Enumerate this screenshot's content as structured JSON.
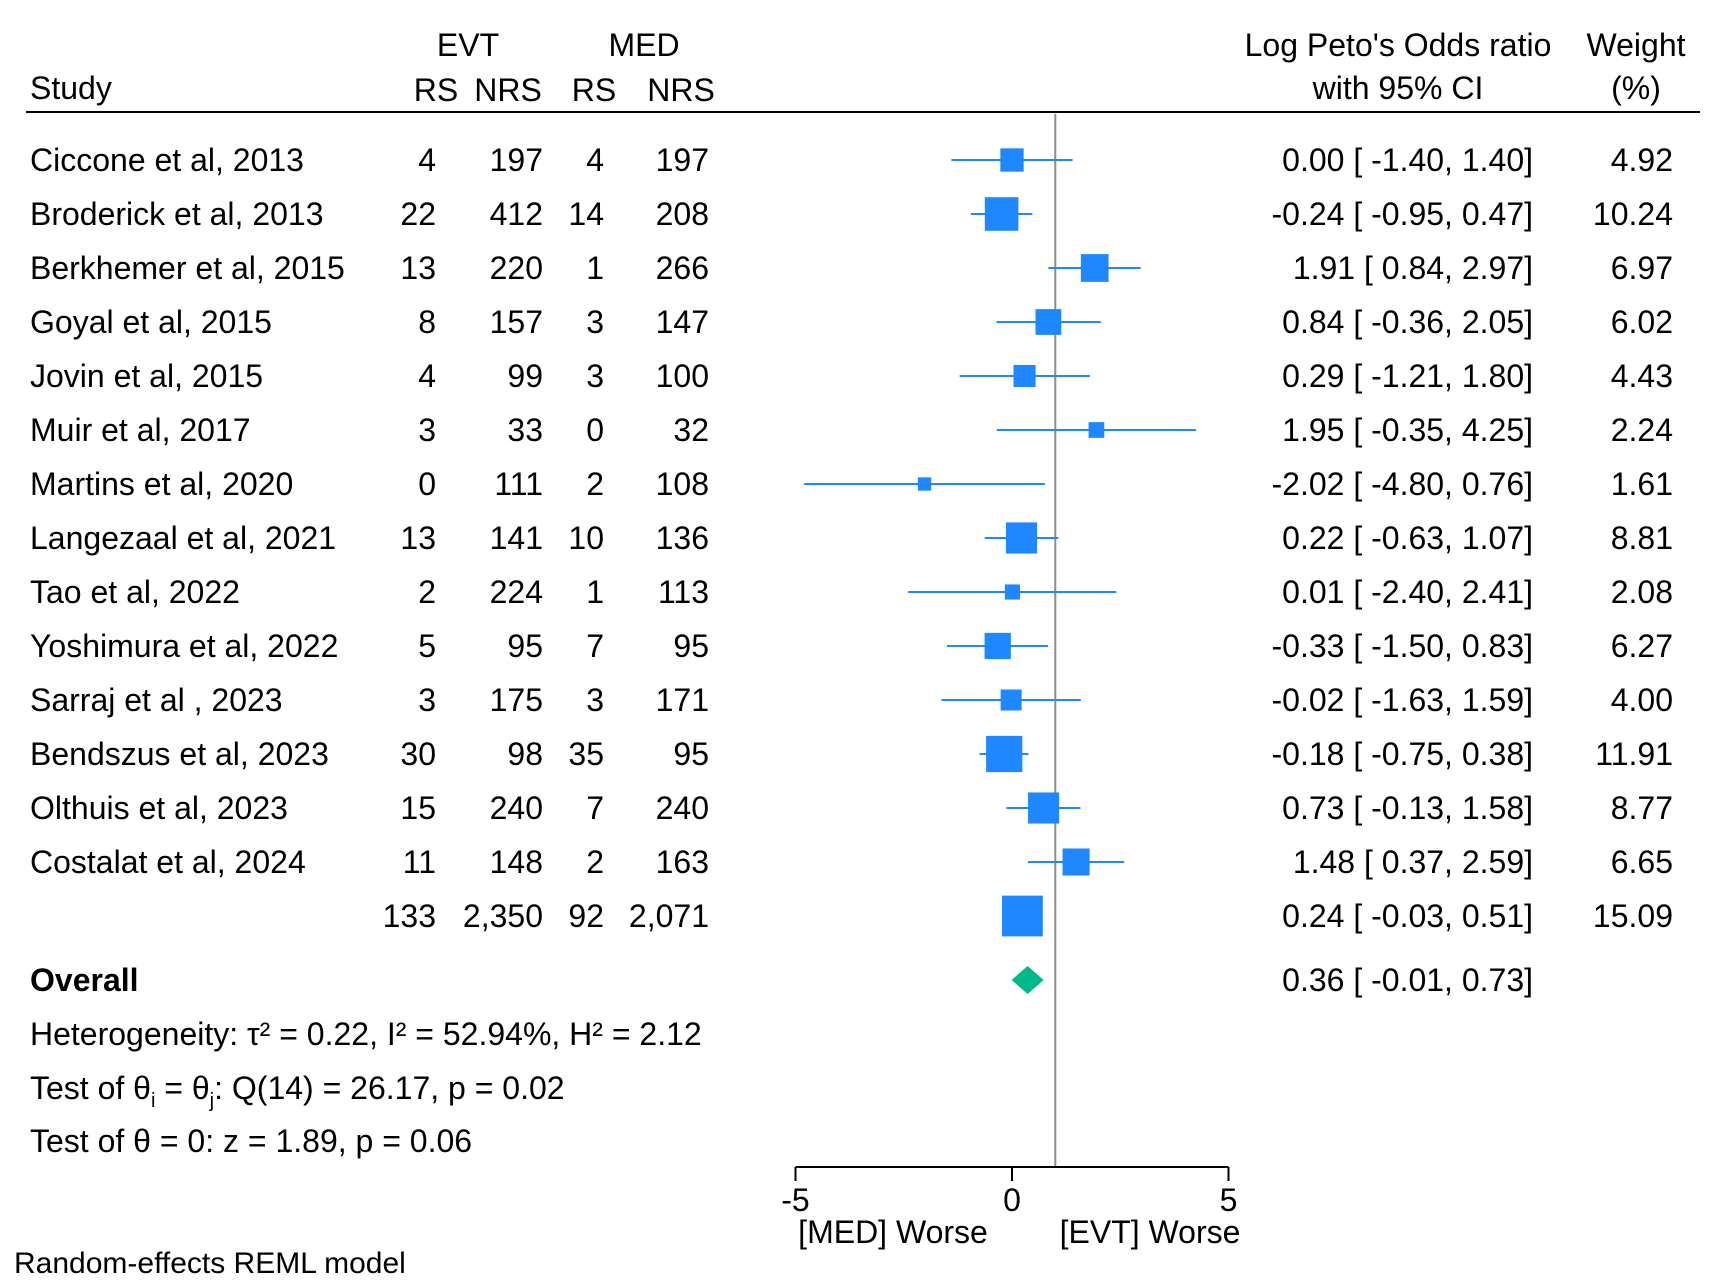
{
  "chart_data": {
    "type": "forest",
    "model_note": "Random-effects REML model",
    "columns": {
      "study": "Study",
      "evt_group": "EVT",
      "med_group": "MED",
      "rs": "RS",
      "nrs": "NRS",
      "effect_line1": "Log Peto's Odds ratio",
      "effect_line2": "with 95% CI",
      "weight_line1": "Weight",
      "weight_line2": "(%)"
    },
    "studies": [
      {
        "study": "Ciccone et al, 2013",
        "evt_rs": "4",
        "evt_nrs": "197",
        "med_rs": "4",
        "med_nrs": "197",
        "est": 0.0,
        "lo": -1.4,
        "hi": 1.4,
        "ci_text": "0.00 [ -1.40,  1.40]",
        "weight": "4.92"
      },
      {
        "study": "Broderick et al, 2013",
        "evt_rs": "22",
        "evt_nrs": "412",
        "med_rs": "14",
        "med_nrs": "208",
        "est": -0.24,
        "lo": -0.95,
        "hi": 0.47,
        "ci_text": "-0.24 [ -0.95,  0.47]",
        "weight": "10.24"
      },
      {
        "study": "Berkhemer et al, 2015",
        "evt_rs": "13",
        "evt_nrs": "220",
        "med_rs": "1",
        "med_nrs": "266",
        "est": 1.91,
        "lo": 0.84,
        "hi": 2.97,
        "ci_text": "1.91 [  0.84,  2.97]",
        "weight": "6.97"
      },
      {
        "study": "Goyal et al, 2015",
        "evt_rs": "8",
        "evt_nrs": "157",
        "med_rs": "3",
        "med_nrs": "147",
        "est": 0.84,
        "lo": -0.36,
        "hi": 2.05,
        "ci_text": "0.84 [ -0.36,  2.05]",
        "weight": "6.02"
      },
      {
        "study": "Jovin et al, 2015",
        "evt_rs": "4",
        "evt_nrs": "99",
        "med_rs": "3",
        "med_nrs": "100",
        "est": 0.29,
        "lo": -1.21,
        "hi": 1.8,
        "ci_text": "0.29 [ -1.21,  1.80]",
        "weight": "4.43"
      },
      {
        "study": "Muir et al, 2017",
        "evt_rs": "3",
        "evt_nrs": "33",
        "med_rs": "0",
        "med_nrs": "32",
        "est": 1.95,
        "lo": -0.35,
        "hi": 4.25,
        "ci_text": "1.95 [ -0.35,  4.25]",
        "weight": "2.24"
      },
      {
        "study": "Martins et al, 2020",
        "evt_rs": "0",
        "evt_nrs": "111",
        "med_rs": "2",
        "med_nrs": "108",
        "est": -2.02,
        "lo": -4.8,
        "hi": 0.76,
        "ci_text": "-2.02 [ -4.80,  0.76]",
        "weight": "1.61"
      },
      {
        "study": "Langezaal et al, 2021",
        "evt_rs": "13",
        "evt_nrs": "141",
        "med_rs": "10",
        "med_nrs": "136",
        "est": 0.22,
        "lo": -0.63,
        "hi": 1.07,
        "ci_text": "0.22 [ -0.63,  1.07]",
        "weight": "8.81"
      },
      {
        "study": "Tao et al, 2022",
        "evt_rs": "2",
        "evt_nrs": "224",
        "med_rs": "1",
        "med_nrs": "113",
        "est": 0.01,
        "lo": -2.4,
        "hi": 2.41,
        "ci_text": "0.01 [ -2.40,  2.41]",
        "weight": "2.08"
      },
      {
        "study": "Yoshimura et al, 2022",
        "evt_rs": "5",
        "evt_nrs": "95",
        "med_rs": "7",
        "med_nrs": "95",
        "est": -0.33,
        "lo": -1.5,
        "hi": 0.83,
        "ci_text": "-0.33 [ -1.50,  0.83]",
        "weight": "6.27"
      },
      {
        "study": "Sarraj et al , 2023",
        "evt_rs": "3",
        "evt_nrs": "175",
        "med_rs": "3",
        "med_nrs": "171",
        "est": -0.02,
        "lo": -1.63,
        "hi": 1.59,
        "ci_text": "-0.02 [ -1.63,  1.59]",
        "weight": "4.00"
      },
      {
        "study": "Bendszus et al, 2023",
        "evt_rs": "30",
        "evt_nrs": "98",
        "med_rs": "35",
        "med_nrs": "95",
        "est": -0.18,
        "lo": -0.75,
        "hi": 0.38,
        "ci_text": "-0.18 [ -0.75,  0.38]",
        "weight": "11.91"
      },
      {
        "study": "Olthuis et al, 2023",
        "evt_rs": "15",
        "evt_nrs": "240",
        "med_rs": "7",
        "med_nrs": "240",
        "est": 0.73,
        "lo": -0.13,
        "hi": 1.58,
        "ci_text": "0.73 [ -0.13,  1.58]",
        "weight": "8.77"
      },
      {
        "study": "Costalat et al, 2024",
        "evt_rs": "11",
        "evt_nrs": "148",
        "med_rs": "2",
        "med_nrs": "163",
        "est": 1.48,
        "lo": 0.37,
        "hi": 2.59,
        "ci_text": "1.48 [  0.37,  2.59]",
        "weight": "6.65"
      },
      {
        "study": "",
        "evt_rs": "133",
        "evt_nrs": "2,350",
        "med_rs": "92",
        "med_nrs": "2,071",
        "est": 0.24,
        "lo": -0.03,
        "hi": 0.51,
        "ci_text": "0.24 [ -0.03,  0.51]",
        "weight": "15.09"
      }
    ],
    "overall": {
      "label": "Overall",
      "est": 0.36,
      "lo": -0.01,
      "hi": 0.73,
      "ci_text": "0.36 [ -0.01,  0.73]"
    },
    "heterogeneity": {
      "het_text": "Heterogeneity: τ² = 0.22, I² = 52.94%, H² = 2.12",
      "test_a": "Test of θ",
      "test_sub_i": "i",
      "test_eq": " = θ",
      "test_sub_j": "j",
      "test_rest": ": Q(14) = 26.17, p = 0.02",
      "theta_text": "Test of θ = 0: z = 1.89, p = 0.06"
    },
    "axis": {
      "xlim": [
        -5,
        5
      ],
      "ticks": [
        "-5",
        "0",
        "5"
      ],
      "tick_values": [
        -5,
        0,
        5
      ],
      "reference_line": 1,
      "left_label": "[MED] Worse",
      "right_label": "[EVT] Worse"
    },
    "colors": {
      "study_marker": "#1f87ff",
      "overall_marker": "#00b98a",
      "reference_line": "#8c8c8c"
    }
  }
}
